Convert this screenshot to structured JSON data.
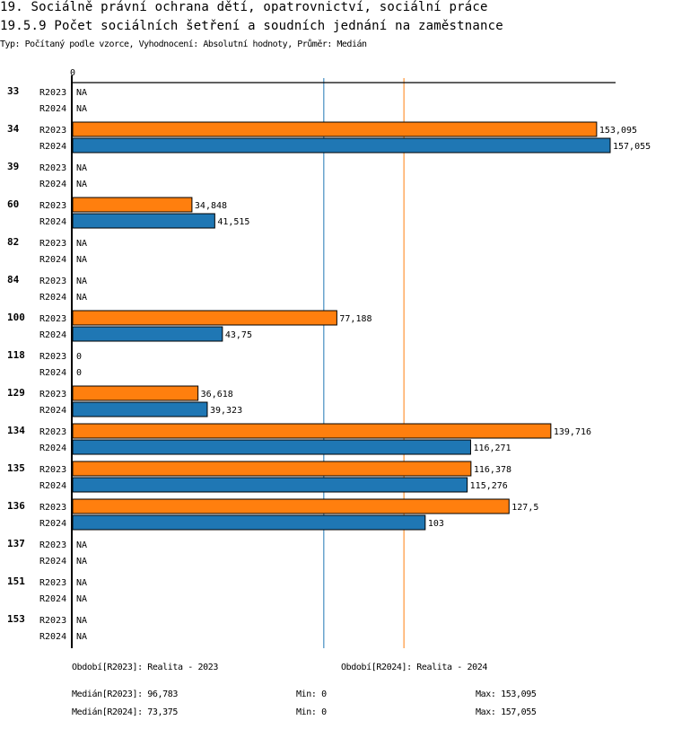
{
  "header": {
    "title": "19. Sociálně právní ochrana dětí, opatrovnictví, sociální práce",
    "subtitle": "19.5.9 Počet sociálních šetření a soudních jednání na zaměstnance",
    "meta": "Typ: Počítaný podle vzorce, Vyhodnocení: Absolutní hodnoty, Průměr: Medián"
  },
  "chart_data": {
    "type": "bar",
    "orientation": "horizontal",
    "title": "19.5.9 Počet sociálních šetření a soudních jednání na zaměstnance",
    "x_axis_tick_labels": [
      "0"
    ],
    "xlim": [
      0,
      157.055
    ],
    "categories": [
      "33",
      "34",
      "39",
      "60",
      "82",
      "84",
      "100",
      "118",
      "129",
      "134",
      "135",
      "136",
      "137",
      "151",
      "153"
    ],
    "series": [
      {
        "name": "R2023",
        "color": "#ff7f0e",
        "values": [
          null,
          153.095,
          null,
          34.848,
          null,
          null,
          77.188,
          0,
          36.618,
          139.716,
          116.378,
          127.5,
          null,
          null,
          null
        ],
        "labels": [
          "NA",
          "153,095",
          "NA",
          "34,848",
          "NA",
          "NA",
          "77,188",
          "0",
          "36,618",
          "139,716",
          "116,378",
          "127,5",
          "NA",
          "NA",
          "NA"
        ]
      },
      {
        "name": "R2024",
        "color": "#1f77b4",
        "values": [
          null,
          157.055,
          null,
          41.515,
          null,
          null,
          43.75,
          0,
          39.323,
          116.271,
          115.276,
          103,
          null,
          null,
          null
        ],
        "labels": [
          "NA",
          "157,055",
          "NA",
          "41,515",
          "NA",
          "NA",
          "43,75",
          "0",
          "39,323",
          "116,271",
          "115,276",
          "103",
          "NA",
          "NA",
          "NA"
        ]
      }
    ],
    "reference_lines": [
      {
        "name": "Medián R2023",
        "value": 96.783,
        "color": "#ff7f0e"
      },
      {
        "name": "Medián R2024",
        "value": 73.375,
        "color": "#1f77b4"
      }
    ]
  },
  "footer": {
    "period_2023": "Období[R2023]: Realita - 2023",
    "period_2024": "Období[R2024]: Realita - 2024",
    "median_2023": "Medián[R2023]: 96,783",
    "median_2024": "Medián[R2024]: 73,375",
    "min_2023": "Min: 0",
    "min_2024": "Min: 0",
    "max_2023": "Max: 153,095",
    "max_2024": "Max: 157,055"
  }
}
